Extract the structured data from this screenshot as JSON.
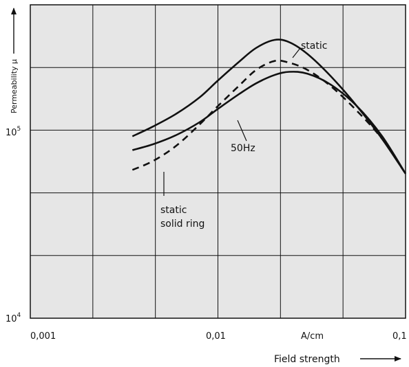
{
  "chart_data": {
    "type": "line",
    "xlabel": "Field strength",
    "ylabel": "Permeability μ",
    "x_scale": "log",
    "y_scale": "log",
    "xlim": [
      0.001,
      0.1
    ],
    "ylim": [
      10000,
      300000
    ],
    "x_tick_labels": [
      "0,001",
      "0,01",
      "A/cm",
      "0,1"
    ],
    "y_tick_labels": [
      {
        "base": "10",
        "exp": "5"
      },
      {
        "base": "10",
        "exp": "4"
      }
    ],
    "grid": true,
    "series": [
      {
        "name": "static",
        "style": "solid",
        "x": [
          0.0035,
          0.0045,
          0.006,
          0.008,
          0.01,
          0.013,
          0.016,
          0.02,
          0.024,
          0.03,
          0.04,
          0.055,
          0.075,
          0.1
        ],
        "y": [
          72000,
          80000,
          92000,
          110000,
          132000,
          162000,
          188000,
          205000,
          200000,
          176000,
          138000,
          100000,
          70000,
          48000
        ]
      },
      {
        "name": "50Hz",
        "style": "solid",
        "x": [
          0.0035,
          0.0045,
          0.006,
          0.008,
          0.01,
          0.013,
          0.016,
          0.02,
          0.024,
          0.03,
          0.04,
          0.055,
          0.075,
          0.1
        ],
        "y": [
          62000,
          66000,
          73000,
          84000,
          97000,
          114000,
          128000,
          140000,
          145000,
          142000,
          126000,
          100000,
          72000,
          48000
        ]
      },
      {
        "name": "static solid ring",
        "style": "dashed",
        "x": [
          0.0035,
          0.0045,
          0.006,
          0.008,
          0.01,
          0.013,
          0.016,
          0.02,
          0.024,
          0.03,
          0.04,
          0.055,
          0.075,
          0.1
        ],
        "y": [
          50000,
          55000,
          65000,
          82000,
          100000,
          125000,
          148000,
          163000,
          160000,
          148000,
          124000,
          95000,
          70000,
          48000
        ]
      }
    ],
    "annotations": [
      {
        "text": "static",
        "target_series": "static"
      },
      {
        "text": "50Hz",
        "target_series": "50Hz"
      },
      {
        "text": "static",
        "target_series": "static solid ring"
      },
      {
        "text": "solid ring",
        "target_series": "static solid ring"
      }
    ]
  }
}
